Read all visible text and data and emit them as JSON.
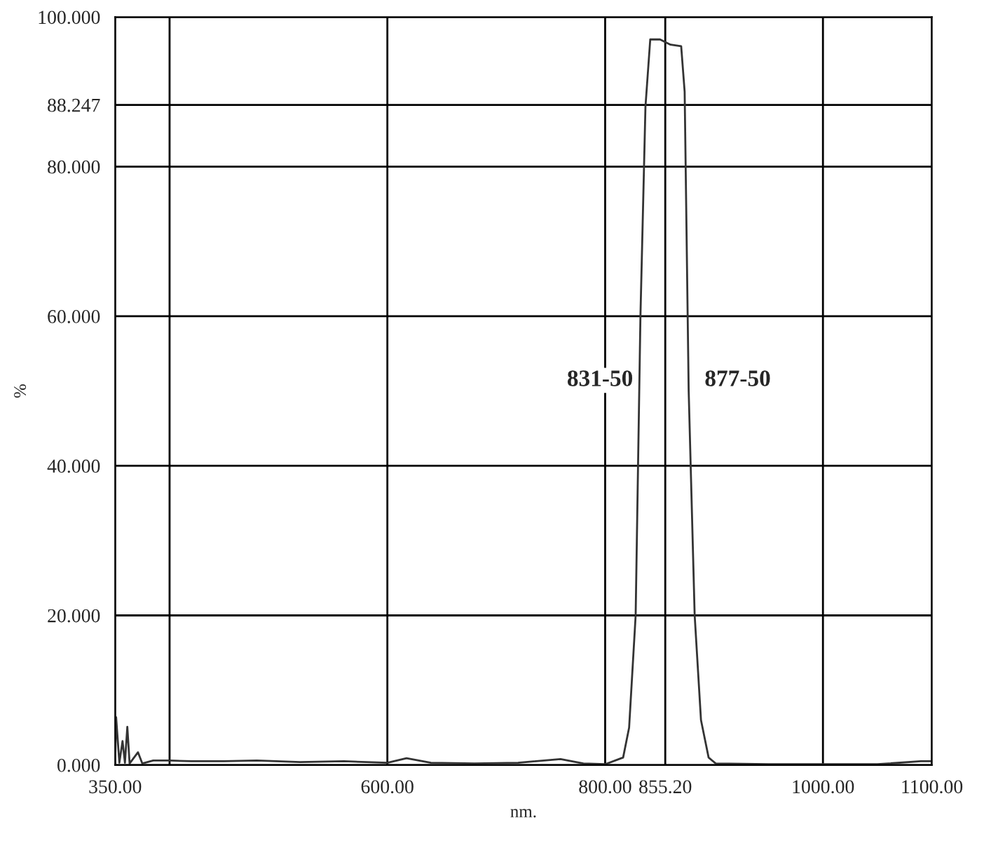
{
  "chart_data": {
    "type": "line",
    "xlabel": "nm.",
    "ylabel": "%",
    "x": [
      350,
      350.9,
      353.9,
      356.8,
      359,
      361.2,
      363.3,
      371,
      375,
      385,
      400,
      420,
      450,
      480,
      520,
      560,
      600,
      617.6,
      640,
      680,
      720,
      759,
      780,
      800,
      816.5,
      822,
      828,
      832.4,
      837,
      841.4,
      850.4,
      860,
      869.8,
      873,
      876.7,
      882.2,
      888,
      895,
      901.5,
      950,
      1000,
      1050,
      1090,
      1100
    ],
    "series": [
      {
        "color": "#333333",
        "values": [
          0,
          6.4,
          0.3,
          3.2,
          0.3,
          5.1,
          0.2,
          1.7,
          0.2,
          0.6,
          0.6,
          0.5,
          0.5,
          0.6,
          0.4,
          0.5,
          0.3,
          0.9,
          0.3,
          0.2,
          0.3,
          0.8,
          0.2,
          0.1,
          1,
          5,
          20,
          60,
          88,
          97,
          97,
          96.3,
          96.1,
          90,
          50,
          20,
          6,
          1,
          0.2,
          0.1,
          0.1,
          0.1,
          0.5,
          0.5
        ]
      }
    ],
    "xlim": [
      350,
      1100
    ],
    "xticks": [
      {
        "value": 350,
        "label": "350.00"
      },
      {
        "value": 400,
        "label": null
      },
      {
        "value": 600,
        "label": "600.00"
      },
      {
        "value": 800,
        "label": "800.00"
      },
      {
        "value": 855.2,
        "label": "855.20"
      },
      {
        "value": 1000,
        "label": "1000.00"
      },
      {
        "value": 1100,
        "label": "1100.00"
      }
    ],
    "ylim": [
      0,
      100
    ],
    "yticks": [
      {
        "value": 0,
        "label": "0.000"
      },
      {
        "value": 20,
        "label": "20.000"
      },
      {
        "value": 40,
        "label": "40.000"
      },
      {
        "value": 60,
        "label": "60.000"
      },
      {
        "value": 80,
        "label": "80.000"
      },
      {
        "value": 88.247,
        "label": "88.247"
      },
      {
        "value": 100,
        "label": "100.000"
      }
    ],
    "grid": true,
    "annotations": [
      {
        "text": "831-50",
        "x": 831,
        "y": 50
      },
      {
        "text": "877-50",
        "x": 877,
        "y": 50
      }
    ]
  }
}
